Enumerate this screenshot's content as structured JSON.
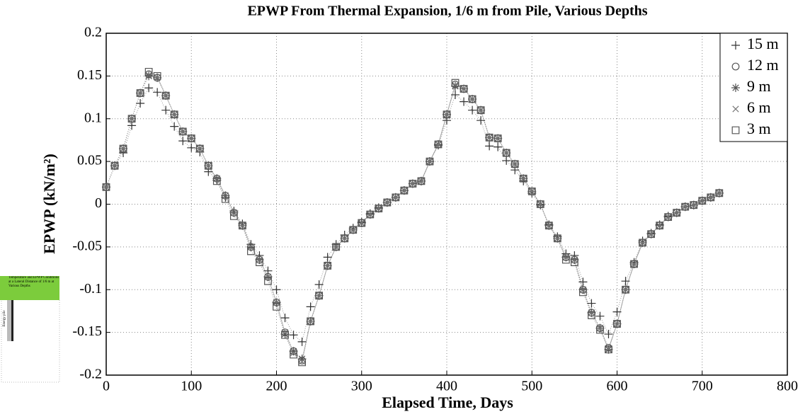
{
  "chart_data": {
    "type": "line",
    "title": "EPWP From Thermal Expansion, 1/6 m from Pile, Various Depths",
    "xlabel": "Elapsed Time, Days",
    "ylabel": "EPWP (kN/m²)",
    "x": [
      0,
      10,
      20,
      30,
      40,
      50,
      60,
      70,
      80,
      90,
      100,
      110,
      120,
      130,
      140,
      150,
      160,
      170,
      180,
      190,
      200,
      210,
      220,
      230,
      240,
      250,
      260,
      270,
      280,
      290,
      300,
      310,
      320,
      330,
      340,
      350,
      360,
      370,
      380,
      390,
      400,
      410,
      420,
      430,
      440,
      450,
      460,
      470,
      480,
      490,
      500,
      510,
      520,
      530,
      540,
      550,
      560,
      570,
      580,
      590,
      600,
      610,
      620,
      630,
      640,
      650,
      660,
      670,
      680,
      690,
      700,
      710,
      720
    ],
    "series": [
      {
        "name": "15 m",
        "color": "#333333",
        "marker": "plus",
        "values": [
          0.02,
          0.045,
          0.06,
          0.092,
          0.118,
          0.136,
          0.131,
          0.11,
          0.091,
          0.074,
          0.066,
          0.061,
          0.038,
          0.028,
          0.008,
          -0.008,
          -0.023,
          -0.047,
          -0.06,
          -0.078,
          -0.1,
          -0.133,
          -0.153,
          -0.161,
          -0.12,
          -0.094,
          -0.062,
          -0.047,
          -0.036,
          -0.028,
          -0.021,
          -0.011,
          -0.004,
          0.002,
          0.008,
          0.016,
          0.024,
          0.027,
          0.05,
          0.069,
          0.098,
          0.128,
          0.12,
          0.11,
          0.098,
          0.068,
          0.067,
          0.051,
          0.04,
          0.027,
          0.013,
          -0.001,
          -0.024,
          -0.038,
          -0.058,
          -0.06,
          -0.091,
          -0.116,
          -0.131,
          -0.152,
          -0.126,
          -0.09,
          -0.068,
          -0.043,
          -0.034,
          -0.024,
          -0.014,
          -0.01,
          -0.003,
          -0.001,
          0.004,
          0.008,
          0.013
        ]
      },
      {
        "name": "12 m",
        "color": "#555555",
        "marker": "circle",
        "values": [
          0.02,
          0.045,
          0.065,
          0.1,
          0.13,
          0.152,
          0.148,
          0.127,
          0.105,
          0.085,
          0.077,
          0.065,
          0.045,
          0.03,
          0.01,
          -0.01,
          -0.025,
          -0.05,
          -0.065,
          -0.085,
          -0.115,
          -0.15,
          -0.172,
          -0.183,
          -0.137,
          -0.107,
          -0.072,
          -0.05,
          -0.04,
          -0.03,
          -0.022,
          -0.012,
          -0.005,
          0.002,
          0.008,
          0.016,
          0.024,
          0.027,
          0.05,
          0.07,
          0.105,
          0.14,
          0.135,
          0.123,
          0.11,
          0.078,
          0.077,
          0.06,
          0.047,
          0.03,
          0.015,
          0,
          -0.025,
          -0.04,
          -0.062,
          -0.065,
          -0.1,
          -0.127,
          -0.145,
          -0.168,
          -0.14,
          -0.1,
          -0.07,
          -0.045,
          -0.035,
          -0.025,
          -0.015,
          -0.01,
          -0.003,
          -0.001,
          0.004,
          0.008,
          0.013
        ]
      },
      {
        "name": "9 m",
        "color": "#555555",
        "marker": "asterisk",
        "values": [
          0.02,
          0.045,
          0.065,
          0.1,
          0.13,
          0.15,
          0.148,
          0.127,
          0.105,
          0.085,
          0.077,
          0.065,
          0.045,
          0.03,
          0.01,
          -0.01,
          -0.025,
          -0.05,
          -0.065,
          -0.085,
          -0.115,
          -0.152,
          -0.172,
          -0.181,
          -0.137,
          -0.107,
          -0.072,
          -0.05,
          -0.04,
          -0.03,
          -0.022,
          -0.012,
          -0.005,
          0.002,
          0.008,
          0.016,
          0.024,
          0.027,
          0.05,
          0.07,
          0.105,
          0.138,
          0.135,
          0.123,
          0.11,
          0.078,
          0.077,
          0.06,
          0.047,
          0.03,
          0.015,
          0,
          -0.025,
          -0.04,
          -0.062,
          -0.065,
          -0.1,
          -0.127,
          -0.145,
          -0.17,
          -0.14,
          -0.1,
          -0.07,
          -0.045,
          -0.035,
          -0.025,
          -0.015,
          -0.01,
          -0.003,
          -0.001,
          0.004,
          0.008,
          0.013
        ]
      },
      {
        "name": "6 m",
        "color": "#777777",
        "marker": "x",
        "values": [
          0.02,
          0.045,
          0.065,
          0.1,
          0.13,
          0.151,
          0.148,
          0.127,
          0.105,
          0.085,
          0.077,
          0.065,
          0.045,
          0.03,
          0.01,
          -0.01,
          -0.025,
          -0.05,
          -0.065,
          -0.085,
          -0.115,
          -0.15,
          -0.174,
          -0.184,
          -0.137,
          -0.107,
          -0.072,
          -0.05,
          -0.04,
          -0.03,
          -0.022,
          -0.012,
          -0.005,
          0.002,
          0.008,
          0.016,
          0.024,
          0.027,
          0.05,
          0.07,
          0.105,
          0.139,
          0.135,
          0.123,
          0.11,
          0.078,
          0.077,
          0.06,
          0.047,
          0.03,
          0.015,
          0,
          -0.025,
          -0.04,
          -0.062,
          -0.065,
          -0.1,
          -0.127,
          -0.145,
          -0.169,
          -0.14,
          -0.1,
          -0.07,
          -0.045,
          -0.035,
          -0.025,
          -0.015,
          -0.01,
          -0.003,
          -0.001,
          0.004,
          0.008,
          0.013
        ]
      },
      {
        "name": "3 m",
        "color": "#555555",
        "marker": "square",
        "values": [
          0.02,
          0.045,
          0.065,
          0.1,
          0.13,
          0.155,
          0.15,
          0.127,
          0.105,
          0.085,
          0.077,
          0.065,
          0.045,
          0.027,
          0.006,
          -0.014,
          -0.025,
          -0.055,
          -0.068,
          -0.09,
          -0.12,
          -0.153,
          -0.176,
          -0.185,
          -0.137,
          -0.107,
          -0.072,
          -0.05,
          -0.04,
          -0.03,
          -0.022,
          -0.012,
          -0.005,
          0.002,
          0.008,
          0.016,
          0.024,
          0.027,
          0.05,
          0.07,
          0.105,
          0.142,
          0.135,
          0.123,
          0.11,
          0.078,
          0.077,
          0.06,
          0.047,
          0.03,
          0.015,
          0,
          -0.025,
          -0.04,
          -0.065,
          -0.068,
          -0.103,
          -0.13,
          -0.147,
          -0.17,
          -0.14,
          -0.1,
          -0.07,
          -0.045,
          -0.035,
          -0.025,
          -0.015,
          -0.01,
          -0.003,
          -0.001,
          0.004,
          0.008,
          0.013
        ]
      }
    ],
    "xlim": [
      0,
      800
    ],
    "xticks": [
      0,
      100,
      200,
      300,
      400,
      500,
      600,
      700,
      800
    ],
    "ylim": [
      -0.2,
      0.2
    ],
    "yticks": [
      -0.2,
      -0.15,
      -0.1,
      -0.05,
      0,
      0.05,
      0.1,
      0.15,
      0.2
    ],
    "grid": true,
    "legend": "upper-right"
  },
  "inset": {
    "caption": "Temperature and EPWP Conditions at a Lateral Distance of 1/6 m at Various Depths",
    "pile_label": "Energy pile"
  }
}
